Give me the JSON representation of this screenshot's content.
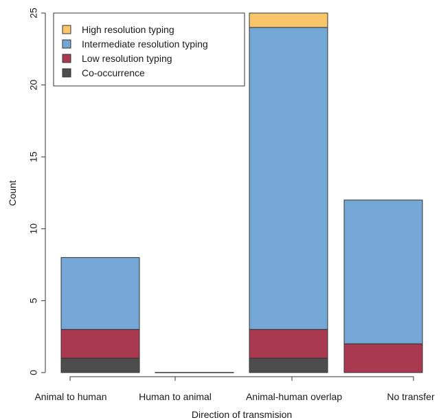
{
  "chart_data": {
    "type": "bar",
    "stacked": true,
    "title": "",
    "xlabel": "Direction of transmision",
    "ylabel": "Count",
    "ylim": [
      0,
      25
    ],
    "yticks": [
      0,
      5,
      10,
      15,
      20,
      25
    ],
    "grid": false,
    "legend_position": "top-left",
    "categories": [
      "Animal to human",
      "Human to animal",
      "Animal-human overlap",
      "No transfer"
    ],
    "series": [
      {
        "name": "Co-occurrence",
        "color": "#4d4d4d",
        "values": [
          1,
          0,
          1,
          0
        ]
      },
      {
        "name": "Low resolution typing",
        "color": "#a8394f",
        "values": [
          2,
          0,
          2,
          2
        ]
      },
      {
        "name": "Intermediate resolution typing",
        "color": "#74a7d6",
        "values": [
          5,
          0,
          21,
          10
        ]
      },
      {
        "name": "High resolution typing",
        "color": "#f8c56a",
        "values": [
          0,
          0,
          1,
          0
        ]
      }
    ],
    "legend_order": [
      "High resolution typing",
      "Intermediate resolution typing",
      "Low resolution typing",
      "Co-occurrence"
    ]
  }
}
